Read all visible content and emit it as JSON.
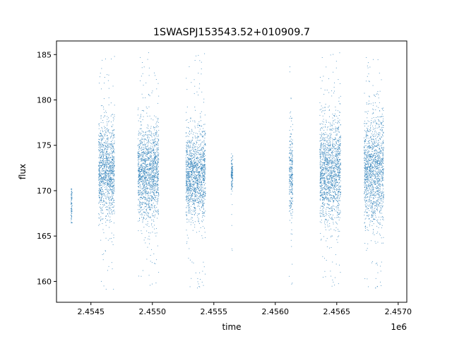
{
  "chart_data": {
    "type": "scatter",
    "title": "1SWASPJ153543.52+010909.7",
    "xlabel": "time",
    "ylabel": "flux",
    "x_offset_label": "1e6",
    "xlim": [
      2454220,
      2457070
    ],
    "ylim": [
      157.7,
      186.5
    ],
    "x_ticks": [
      2.4545,
      2.455,
      2.4555,
      2.456,
      2.4565,
      2.457
    ],
    "x_tick_labels": [
      "2.4545",
      "2.4550",
      "2.4555",
      "2.4560",
      "2.4565",
      "2.4570"
    ],
    "y_ticks": [
      160,
      165,
      170,
      175,
      180,
      185
    ],
    "y_tick_labels": [
      "160",
      "165",
      "170",
      "175",
      "180",
      "185"
    ],
    "grid": false,
    "marker_color": "#1f77b4",
    "series": [
      {
        "description": "dense light-curve observation seasons",
        "segments": [
          {
            "x_start": 2454335,
            "x_end": 2454345,
            "y_center": 168.2,
            "y_spread": 1.6,
            "y_min": 166.5,
            "y_max": 170.2
          },
          {
            "x_start": 2454560,
            "x_end": 2454690,
            "y_center": 172.2,
            "y_spread": 2.6,
            "y_min": 159.1,
            "y_max": 185.2
          },
          {
            "x_start": 2454880,
            "x_end": 2455050,
            "y_center": 172.0,
            "y_spread": 2.5,
            "y_min": 159.3,
            "y_max": 185.3
          },
          {
            "x_start": 2455270,
            "x_end": 2455430,
            "y_center": 171.8,
            "y_spread": 2.4,
            "y_min": 159.0,
            "y_max": 185.2
          },
          {
            "x_start": 2455638,
            "x_end": 2455652,
            "y_center": 172.0,
            "y_spread": 0.9,
            "y_min": 162.0,
            "y_max": 175.3
          },
          {
            "x_start": 2456110,
            "x_end": 2456140,
            "y_center": 172.0,
            "y_spread": 2.4,
            "y_min": 159.3,
            "y_max": 184.8
          },
          {
            "x_start": 2456360,
            "x_end": 2456530,
            "y_center": 172.2,
            "y_spread": 2.7,
            "y_min": 159.2,
            "y_max": 185.3
          },
          {
            "x_start": 2456720,
            "x_end": 2456880,
            "y_center": 172.2,
            "y_spread": 3.0,
            "y_min": 159.0,
            "y_max": 185.3
          }
        ]
      }
    ]
  }
}
